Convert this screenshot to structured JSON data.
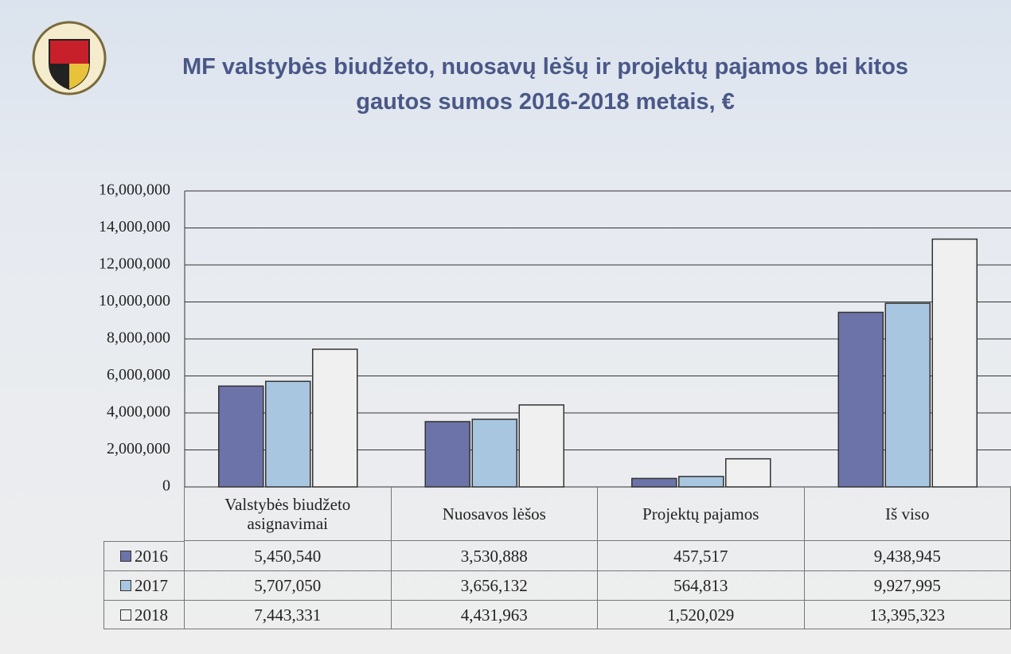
{
  "chart_data": {
    "type": "bar",
    "title": "MF valstybės biudžeto, nuosavų lėšų ir projektų pajamos bei kitos gautos sumos 2016-2018 metais,  €",
    "categories": [
      "Valstybės biudžeto asignavimai",
      "Nuosavos lėšos",
      "Projektų pajamos",
      "Iš viso"
    ],
    "series": [
      {
        "name": "2016",
        "color": "#6b73a8",
        "values": [
          5450540,
          3530888,
          457517,
          9438945
        ],
        "value_labels": [
          "5,450,540",
          "3,530,888",
          "457,517",
          "9,438,945"
        ]
      },
      {
        "name": "2017",
        "color": "#a9c6e0",
        "values": [
          5707050,
          3656132,
          564813,
          9927995
        ],
        "value_labels": [
          "5,707,050",
          "3,656,132",
          "564,813",
          "9,927,995"
        ]
      },
      {
        "name": "2018",
        "color": "#f0f0f0",
        "values": [
          7443331,
          4431963,
          1520029,
          13395323
        ],
        "value_labels": [
          "7,443,331",
          "4,431,963",
          "1,520,029",
          "13,395,323"
        ]
      }
    ],
    "ylim": [
      0,
      16000000
    ],
    "yticks": [
      0,
      {
        "value": 2000000,
        "label": "2,000,000"
      },
      {
        "value": 4000000,
        "label": "4,000,000"
      },
      {
        "value": 6000000,
        "label": "6,000,000"
      },
      {
        "value": 8000000,
        "label": "8,000,000"
      },
      {
        "value": 10000000,
        "label": "10,000,000"
      },
      {
        "value": 12000000,
        "label": "12,000,000"
      },
      {
        "value": 14000000,
        "label": "14,000,000"
      },
      {
        "value": 16000000,
        "label": "16,000,000"
      }
    ],
    "grid": true
  }
}
